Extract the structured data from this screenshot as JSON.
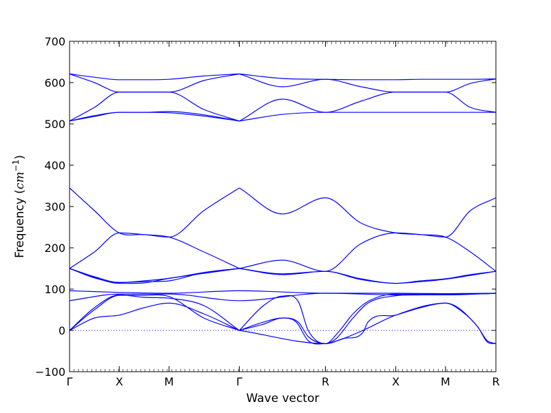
{
  "chart_data": {
    "type": "line",
    "xlabel": "Wave vector",
    "ylabel": "Frequency ($cm^{-1}$)",
    "ylim": [
      -100,
      700
    ],
    "yticks": [
      -100,
      0,
      100,
      200,
      300,
      400,
      500,
      600,
      700
    ],
    "xticks": [
      {
        "label": "Γ",
        "x": 0
      },
      {
        "label": "X",
        "x": 0.5
      },
      {
        "label": "M",
        "x": 1.0
      },
      {
        "label": "Γ",
        "x": 1.707
      },
      {
        "label": "R",
        "x": 2.573
      },
      {
        "label": "X",
        "x": 3.28
      },
      {
        "label": "M",
        "x": 3.78
      },
      {
        "label": "R",
        "x": 4.287
      }
    ],
    "xlim": [
      0,
      4.287
    ],
    "grid": false,
    "line_color": "#0000ff",
    "zero_line": {
      "y": 0,
      "style": "dotted"
    },
    "series": [
      {
        "x": [
          0,
          0.25,
          0.5,
          0.75,
          1.0,
          1.35,
          1.707
        ],
        "values": [
          621,
          613,
          607,
          607,
          608,
          616,
          621
        ]
      },
      {
        "x": [
          0,
          0.25,
          0.5,
          0.75,
          1.0,
          1.35,
          1.707
        ],
        "values": [
          621,
          600,
          577,
          577,
          577,
          605,
          621
        ]
      },
      {
        "x": [
          0,
          0.25,
          0.5,
          0.75,
          1.0,
          1.35,
          1.707
        ],
        "values": [
          507,
          540,
          577,
          577,
          577,
          535,
          507
        ]
      },
      {
        "x": [
          0,
          0.25,
          0.5,
          0.75,
          1.0,
          1.35,
          1.707
        ],
        "values": [
          507,
          520,
          528,
          528,
          530,
          522,
          507
        ]
      },
      {
        "x": [
          0,
          0.25,
          0.5,
          0.75,
          1.0,
          1.35,
          1.707
        ],
        "values": [
          507,
          518,
          528,
          528,
          527,
          519,
          507
        ]
      },
      {
        "x": [
          1.707,
          2.14,
          2.573,
          2.93,
          3.28,
          3.53,
          3.78,
          4.03,
          4.287
        ],
        "values": [
          621,
          610,
          608,
          607,
          607,
          608,
          608,
          608,
          609
        ]
      },
      {
        "x": [
          1.707,
          2.14,
          2.573,
          2.93,
          3.28,
          3.53,
          3.78,
          4.03,
          4.287
        ],
        "values": [
          621,
          590,
          608,
          590,
          577,
          577,
          577,
          598,
          609
        ]
      },
      {
        "x": [
          1.707,
          2.14,
          2.573,
          2.93,
          3.28,
          3.53,
          3.78,
          4.03,
          4.287
        ],
        "values": [
          507,
          560,
          528,
          555,
          577,
          577,
          577,
          540,
          528
        ]
      },
      {
        "x": [
          1.707,
          2.14,
          2.573,
          2.93,
          3.28,
          3.53,
          3.78,
          4.03,
          4.287
        ],
        "values": [
          507,
          523,
          528,
          528,
          528,
          528,
          528,
          528,
          528
        ]
      },
      {
        "x": [
          0,
          0.25,
          0.5,
          0.75,
          1.0,
          1.35,
          1.707
        ],
        "values": [
          345,
          290,
          236,
          232,
          226,
          290,
          345
        ]
      },
      {
        "x": [
          0,
          0.25,
          0.5,
          0.75,
          1.0,
          1.35,
          1.707
        ],
        "values": [
          150,
          190,
          236,
          232,
          226,
          190,
          150
        ]
      },
      {
        "x": [
          0,
          0.25,
          0.5,
          0.75,
          1.0,
          1.35,
          1.707
        ],
        "values": [
          150,
          130,
          116,
          120,
          126,
          140,
          150
        ]
      },
      {
        "x": [
          0,
          0.25,
          0.5,
          0.75,
          1.0,
          1.35,
          1.707
        ],
        "values": [
          150,
          128,
          114,
          115,
          126,
          138,
          150
        ]
      },
      {
        "x": [
          0,
          0.25,
          0.5,
          0.75,
          1.0,
          1.35,
          1.707
        ],
        "values": [
          150,
          127,
          116,
          118,
          120,
          140,
          150
        ]
      },
      {
        "x": [
          1.707,
          2.14,
          2.573,
          2.93,
          3.28,
          3.53,
          3.78,
          4.03,
          4.287
        ],
        "values": [
          345,
          282,
          321,
          260,
          236,
          232,
          226,
          290,
          321
        ]
      },
      {
        "x": [
          1.707,
          2.14,
          2.573,
          2.93,
          3.28,
          3.53,
          3.78,
          4.03,
          4.287
        ],
        "values": [
          150,
          170,
          143,
          210,
          236,
          232,
          226,
          190,
          143
        ]
      },
      {
        "x": [
          1.707,
          2.14,
          2.573,
          2.93,
          3.28,
          3.53,
          3.78,
          4.03,
          4.287
        ],
        "values": [
          150,
          137,
          143,
          125,
          114,
          120,
          125,
          135,
          143
        ]
      },
      {
        "x": [
          1.707,
          2.14,
          2.573,
          2.93,
          3.28,
          3.53,
          3.78,
          4.03,
          4.287
        ],
        "values": [
          150,
          135,
          143,
          123,
          114,
          118,
          124,
          133,
          143
        ]
      },
      {
        "x": [
          0,
          0.5,
          1.0,
          1.707,
          2.573,
          3.28,
          3.78,
          4.287
        ],
        "values": [
          96,
          92,
          90,
          96,
          90,
          90,
          89,
          90
        ]
      },
      {
        "x": [
          0,
          0.5,
          1.0,
          1.707,
          2.573,
          3.28,
          3.78,
          4.287
        ],
        "values": [
          72,
          88,
          88,
          72,
          90,
          86,
          86,
          90
        ]
      },
      {
        "x": [
          0,
          0.25,
          0.5,
          0.75,
          1.0,
          1.35,
          1.707
        ],
        "values": [
          0,
          50,
          85,
          85,
          82,
          30,
          0
        ]
      },
      {
        "x": [
          0,
          0.25,
          0.5,
          0.75,
          1.0,
          1.35,
          1.707
        ],
        "values": [
          0,
          55,
          86,
          80,
          78,
          60,
          0
        ]
      },
      {
        "x": [
          0,
          0.25,
          0.5,
          0.75,
          1.0,
          1.35,
          1.707
        ],
        "values": [
          0,
          30,
          37,
          55,
          66,
          40,
          0
        ]
      },
      {
        "x": [
          1.707,
          1.95,
          2.14,
          2.3,
          2.4,
          2.573,
          2.7,
          2.85,
          3.0,
          3.28,
          3.53,
          3.78,
          3.95,
          4.1,
          4.2,
          4.287
        ],
        "values": [
          0,
          60,
          83,
          70,
          0,
          -32,
          -5,
          40,
          70,
          88,
          88,
          88,
          88,
          89,
          89,
          90
        ]
      },
      {
        "x": [
          1.707,
          1.95,
          2.14,
          2.3,
          2.4,
          2.573,
          2.68,
          2.85,
          3.0,
          3.28,
          3.53,
          3.78,
          3.95,
          4.1,
          4.2,
          4.287
        ],
        "values": [
          0,
          20,
          30,
          20,
          -15,
          -32,
          -20,
          30,
          66,
          84,
          86,
          88,
          88,
          89,
          89,
          90
        ]
      },
      {
        "x": [
          1.707,
          1.95,
          2.14,
          2.28,
          2.4,
          2.573,
          2.75,
          2.95,
          3.0,
          3.28,
          3.53,
          3.78,
          3.95,
          4.1,
          4.2,
          4.287
        ],
        "values": [
          0,
          15,
          30,
          20,
          -25,
          -32,
          -20,
          -5,
          20,
          37,
          55,
          66,
          45,
          10,
          -25,
          -32
        ]
      },
      {
        "x": [
          1.707,
          2.573,
          2.75,
          2.95,
          3.28,
          3.78,
          4.1,
          4.2,
          4.287
        ],
        "values": [
          0,
          -32,
          -20,
          0,
          37,
          66,
          10,
          -28,
          -32
        ]
      }
    ]
  }
}
